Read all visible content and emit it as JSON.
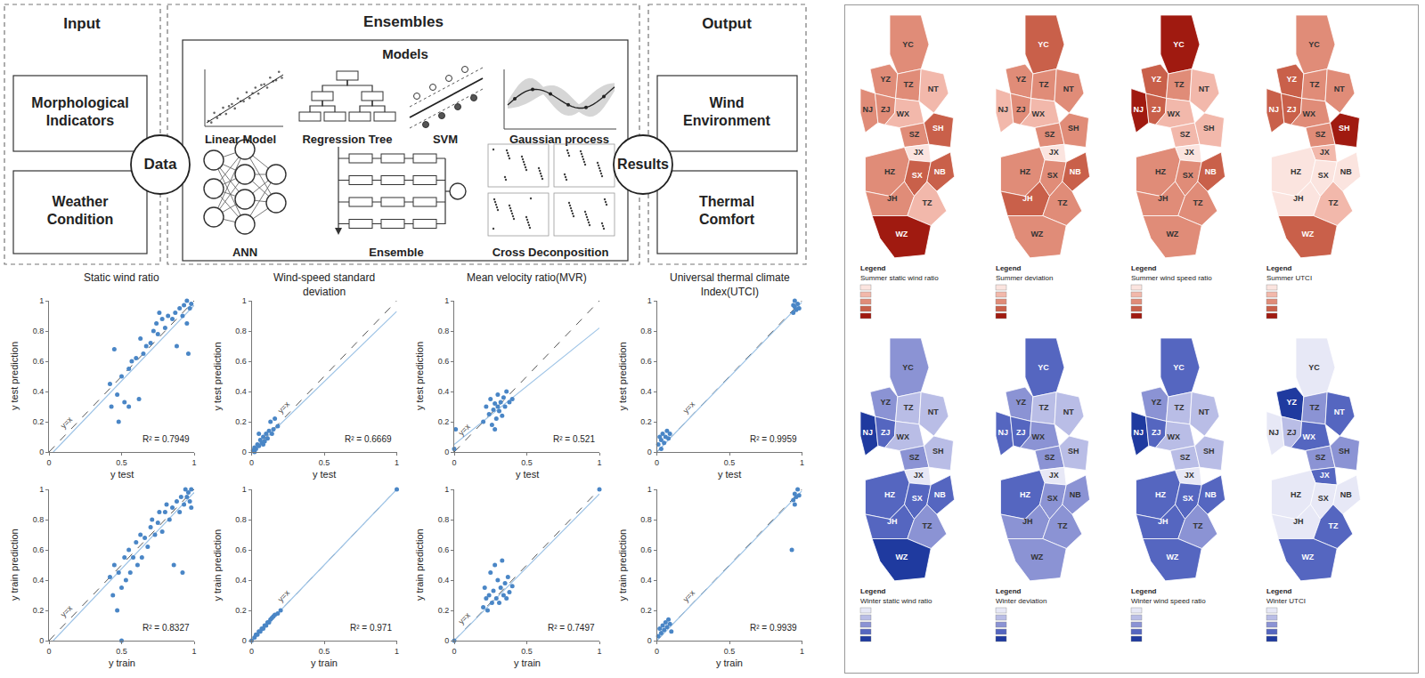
{
  "diagram": {
    "sections": {
      "input": "Input",
      "ensembles": "Ensembles",
      "output": "Output"
    },
    "inputs": [
      "Morphological Indicators",
      "Weather Condition"
    ],
    "hub_in": "Data",
    "models_title": "Models",
    "models": [
      "Linear Model",
      "Regression Tree",
      "SVM",
      "Gaussian process",
      "ANN",
      "Ensemble",
      "Cross Deconposition"
    ],
    "hub_out": "Results",
    "outputs": [
      "Wind Environment",
      "Thermal Comfort"
    ]
  },
  "chart_data": [
    {
      "type": "scatter",
      "title": "Static wind ratio",
      "x_label": "y test",
      "y_label": "y test prediction",
      "x": [
        0.42,
        0.43,
        0.45,
        0.47,
        0.48,
        0.5,
        0.52,
        0.55,
        0.55,
        0.57,
        0.6,
        0.62,
        0.63,
        0.65,
        0.67,
        0.7,
        0.72,
        0.74,
        0.75,
        0.78,
        0.8,
        0.82,
        0.85,
        0.87,
        0.88,
        0.9,
        0.92,
        0.95,
        0.95,
        0.97,
        0.98,
        0.93,
        0.76,
        0.96
      ],
      "y": [
        0.45,
        0.3,
        0.68,
        0.38,
        0.2,
        0.5,
        0.33,
        0.3,
        0.55,
        0.6,
        0.62,
        0.35,
        0.75,
        0.65,
        0.7,
        0.72,
        0.8,
        0.85,
        0.78,
        0.88,
        0.82,
        0.9,
        0.88,
        0.92,
        0.7,
        0.95,
        0.9,
        1.0,
        0.85,
        0.95,
        0.98,
        0.97,
        0.92,
        0.65
      ],
      "color": "#4a86c6",
      "marker": "circle",
      "xlim": [
        0,
        1
      ],
      "ylim": [
        0,
        1
      ],
      "xticks": [
        0,
        0.5,
        1
      ],
      "yticks": [
        0,
        0.2,
        0.4,
        0.6,
        0.8,
        1
      ],
      "grid": false,
      "annotation": "R² = 0.7949",
      "reference_line": {
        "label": "y=x",
        "color": "#555555",
        "line_style": "dashed"
      },
      "trend": {
        "x": [
          0.03,
          1
        ],
        "y": [
          0,
          0.97
        ],
        "color": "#9dc3e6",
        "line_style": "solid"
      }
    },
    {
      "type": "scatter",
      "title": "Wind-speed standard deviation",
      "x_label": "y test",
      "y_label": "y test prediction",
      "x": [
        0.01,
        0.02,
        0.03,
        0.04,
        0.05,
        0.06,
        0.07,
        0.08,
        0.09,
        0.1,
        0.11,
        0.12,
        0.13,
        0.14,
        0.15,
        0.16,
        0.18,
        0.05,
        0.08,
        0.02
      ],
      "y": [
        0.01,
        0.03,
        0.02,
        0.05,
        0.04,
        0.08,
        0.06,
        0.1,
        0.07,
        0.12,
        0.09,
        0.14,
        0.2,
        0.12,
        0.15,
        0.22,
        0.17,
        0.12,
        0.05,
        0.0
      ],
      "color": "#4a86c6",
      "marker": "circle",
      "xlim": [
        0,
        1
      ],
      "ylim": [
        0,
        1
      ],
      "xticks": [
        0,
        0.5,
        1
      ],
      "yticks": [
        0,
        0.2,
        0.4,
        0.6,
        0.8,
        1
      ],
      "grid": false,
      "annotation": "R² = 0.6669",
      "reference_line": {
        "label": "y=x",
        "color": "#555555",
        "line_style": "dashed"
      },
      "trend": {
        "x": [
          0,
          1
        ],
        "y": [
          0,
          0.93
        ],
        "color": "#9dc3e6",
        "line_style": "solid"
      }
    },
    {
      "type": "scatter",
      "title": "Mean velocity ratio(MVR)",
      "x_label": "y test",
      "y_label": "y test prediction",
      "x": [
        0,
        0.01,
        0.2,
        0.22,
        0.24,
        0.25,
        0.26,
        0.27,
        0.28,
        0.29,
        0.3,
        0.3,
        0.31,
        0.32,
        0.33,
        0.34,
        0.35,
        0.36,
        0.38,
        0.4,
        0.28
      ],
      "y": [
        0.02,
        0.15,
        0.2,
        0.3,
        0.25,
        0.35,
        0.18,
        0.28,
        0.32,
        0.22,
        0.3,
        0.38,
        0.27,
        0.33,
        0.24,
        0.36,
        0.3,
        0.4,
        0.33,
        0.35,
        0.15
      ],
      "color": "#4a86c6",
      "marker": "circle",
      "xlim": [
        0,
        1
      ],
      "ylim": [
        0,
        1
      ],
      "xticks": [
        0,
        0.5,
        1
      ],
      "yticks": [
        0,
        0.2,
        0.4,
        0.6,
        0.8,
        1
      ],
      "grid": false,
      "annotation": "R² = 0.521",
      "reference_line": {
        "label": "y=x",
        "color": "#555555",
        "line_style": "dashed"
      },
      "trend": {
        "x": [
          0,
          1
        ],
        "y": [
          0.05,
          0.82
        ],
        "color": "#9dc3e6",
        "line_style": "solid"
      }
    },
    {
      "type": "scatter",
      "title": "Universal thermal climate Index(UTCI)",
      "x_label": "y test",
      "y_label": "y test prediction",
      "x": [
        0.01,
        0.02,
        0.03,
        0.04,
        0.05,
        0.06,
        0.07,
        0.08,
        0.09,
        0.03,
        0.94,
        0.95,
        0.96,
        0.97,
        0.95,
        0.98,
        0.94
      ],
      "y": [
        0.05,
        0.1,
        0.08,
        0.12,
        0.06,
        0.1,
        0.14,
        0.09,
        0.12,
        0.02,
        0.92,
        0.96,
        0.94,
        0.98,
        1.0,
        0.95,
        0.97
      ],
      "color": "#4a86c6",
      "marker": "circle",
      "xlim": [
        0,
        1
      ],
      "ylim": [
        0,
        1
      ],
      "xticks": [
        0,
        0.5,
        1
      ],
      "yticks": [
        0,
        0.2,
        0.4,
        0.6,
        0.8,
        1
      ],
      "grid": false,
      "annotation": "R² = 0.9959",
      "reference_line": {
        "label": "y=x",
        "color": "#555555",
        "line_style": "dashed"
      },
      "trend": {
        "x": [
          0,
          1
        ],
        "y": [
          0,
          0.99
        ],
        "color": "#9dc3e6",
        "line_style": "solid"
      }
    },
    {
      "type": "scatter",
      "x_label": "y train",
      "y_label": "y train prediction",
      "x": [
        0.42,
        0.44,
        0.45,
        0.47,
        0.48,
        0.5,
        0.5,
        0.52,
        0.53,
        0.55,
        0.56,
        0.58,
        0.6,
        0.61,
        0.63,
        0.64,
        0.66,
        0.68,
        0.7,
        0.71,
        0.73,
        0.75,
        0.76,
        0.78,
        0.8,
        0.81,
        0.83,
        0.85,
        0.86,
        0.88,
        0.9,
        0.91,
        0.93,
        0.94,
        0.95,
        0.96,
        0.97,
        0.98,
        0.92,
        0.98
      ],
      "y": [
        0.42,
        0.3,
        0.5,
        0.2,
        0.45,
        0.35,
        0.0,
        0.55,
        0.4,
        0.6,
        0.45,
        0.55,
        0.65,
        0.5,
        0.7,
        0.55,
        0.68,
        0.62,
        0.75,
        0.8,
        0.7,
        0.78,
        0.85,
        0.72,
        0.85,
        0.9,
        0.8,
        0.88,
        0.5,
        0.92,
        0.85,
        0.95,
        0.9,
        1.0,
        0.95,
        0.98,
        0.92,
        1.0,
        0.45,
        0.88
      ],
      "color": "#4a86c6",
      "marker": "circle",
      "xlim": [
        0,
        1
      ],
      "ylim": [
        0,
        1
      ],
      "xticks": [
        0,
        0.5,
        1
      ],
      "yticks": [
        0,
        0.2,
        0.4,
        0.6,
        0.8,
        1
      ],
      "grid": false,
      "annotation": "R² = 0.8327",
      "reference_line": {
        "label": "y=x",
        "color": "#555555",
        "line_style": "dashed"
      },
      "trend": {
        "x": [
          0.03,
          1
        ],
        "y": [
          0,
          0.98
        ],
        "color": "#9dc3e6",
        "line_style": "solid"
      }
    },
    {
      "type": "scatter",
      "x_label": "y train",
      "y_label": "y train prediction",
      "x": [
        0.0,
        0.02,
        0.03,
        0.04,
        0.05,
        0.06,
        0.07,
        0.08,
        0.09,
        0.1,
        0.11,
        0.12,
        0.13,
        0.14,
        0.15,
        0.16,
        0.18,
        0.2,
        1
      ],
      "y": [
        0.0,
        0.02,
        0.04,
        0.04,
        0.06,
        0.06,
        0.08,
        0.08,
        0.1,
        0.1,
        0.12,
        0.12,
        0.14,
        0.15,
        0.16,
        0.17,
        0.18,
        0.2,
        1
      ],
      "color": "#4a86c6",
      "marker": "circle",
      "xlim": [
        0,
        1
      ],
      "ylim": [
        0,
        1
      ],
      "xticks": [
        0,
        0.5,
        1
      ],
      "yticks": [
        0,
        0.2,
        0.4,
        0.6,
        0.8,
        1
      ],
      "grid": false,
      "annotation": "R² = 0.971",
      "reference_line": {
        "label": "y=x",
        "color": "#555555",
        "line_style": "dashed"
      },
      "trend": {
        "x": [
          0,
          1
        ],
        "y": [
          0,
          1
        ],
        "color": "#9dc3e6",
        "line_style": "solid"
      }
    },
    {
      "type": "scatter",
      "x_label": "y train",
      "y_label": "y train prediction",
      "x": [
        0,
        0.2,
        0.21,
        0.22,
        0.23,
        0.24,
        0.25,
        0.26,
        0.27,
        0.28,
        0.29,
        0.3,
        0.31,
        0.32,
        0.33,
        0.34,
        0.35,
        0.36,
        0.37,
        0.38,
        0.4,
        1
      ],
      "y": [
        0,
        0.22,
        0.35,
        0.28,
        0.2,
        0.3,
        0.45,
        0.25,
        0.33,
        0.5,
        0.28,
        0.4,
        0.25,
        0.35,
        0.53,
        0.3,
        0.38,
        0.28,
        0.42,
        0.32,
        0.36,
        1
      ],
      "color": "#4a86c6",
      "marker": "circle",
      "xlim": [
        0,
        1
      ],
      "ylim": [
        0,
        1
      ],
      "xticks": [
        0,
        0.5,
        1
      ],
      "yticks": [
        0,
        0.2,
        0.4,
        0.6,
        0.8,
        1
      ],
      "grid": false,
      "annotation": "R² = 0.7497",
      "reference_line": {
        "label": "y=x",
        "color": "#555555",
        "line_style": "dashed"
      },
      "trend": {
        "x": [
          0,
          1
        ],
        "y": [
          0,
          0.97
        ],
        "color": "#9dc3e6",
        "line_style": "solid"
      }
    },
    {
      "type": "scatter",
      "x_label": "y train",
      "y_label": "y train prediction",
      "x": [
        0.01,
        0.02,
        0.03,
        0.04,
        0.05,
        0.06,
        0.07,
        0.08,
        0.09,
        0.1,
        0.93,
        0.94,
        0.95,
        0.96,
        0.97,
        0.98,
        0.95
      ],
      "y": [
        0.03,
        0.08,
        0.05,
        0.1,
        0.07,
        0.12,
        0.09,
        0.14,
        0.11,
        0.06,
        0.6,
        0.93,
        0.97,
        0.95,
        1.0,
        0.96,
        0.9
      ],
      "color": "#4a86c6",
      "marker": "circle",
      "xlim": [
        0,
        1
      ],
      "ylim": [
        0,
        1
      ],
      "xticks": [
        0,
        0.5,
        1
      ],
      "yticks": [
        0,
        0.2,
        0.4,
        0.6,
        0.8,
        1
      ],
      "grid": false,
      "annotation": "R² = 0.9939",
      "reference_line": {
        "label": "y=x",
        "color": "#555555",
        "line_style": "dashed"
      },
      "trend": {
        "x": [
          0,
          1
        ],
        "y": [
          0,
          0.99
        ],
        "color": "#9dc3e6",
        "line_style": "solid"
      }
    }
  ],
  "maps": {
    "legend_heading": "Legend",
    "cities": [
      "YC",
      "YZ",
      "TZ",
      "NT",
      "NJ",
      "ZJ",
      "WX",
      "SZ",
      "SH",
      "JX",
      "HZ",
      "SX",
      "NB",
      "JH",
      "TZ",
      "WZ"
    ],
    "panels": [
      {
        "title": "Summer static wind ratio",
        "colors": [
          "#fbe4df",
          "#f2b8ab",
          "#e08c78",
          "#c9604a",
          "#a01a10"
        ],
        "classes": [
          3,
          3,
          3,
          2,
          3,
          3,
          2,
          3,
          4,
          1,
          3,
          4,
          4,
          3,
          2,
          5
        ]
      },
      {
        "title": "Summer deviation",
        "colors": [
          "#fbe4df",
          "#f2b8ab",
          "#e08c78",
          "#c9604a",
          "#a01a10"
        ],
        "classes": [
          4,
          3,
          3,
          3,
          2,
          3,
          2,
          3,
          3,
          1,
          3,
          3,
          4,
          4,
          3,
          3
        ]
      },
      {
        "title": "Summer wind speed ratio",
        "colors": [
          "#fbe4df",
          "#f2b8ab",
          "#e08c78",
          "#c9604a",
          "#a01a10"
        ],
        "classes": [
          5,
          4,
          3,
          2,
          5,
          4,
          2,
          2,
          2,
          1,
          3,
          3,
          4,
          3,
          3,
          3
        ]
      },
      {
        "title": "Summer UTCI",
        "colors": [
          "#fbe4df",
          "#f2b8ab",
          "#e08c78",
          "#c9604a",
          "#a01a10"
        ],
        "classes": [
          3,
          4,
          3,
          3,
          4,
          4,
          3,
          3,
          5,
          2,
          1,
          1,
          1,
          1,
          2,
          4
        ]
      },
      {
        "title": "Winter static wind ratio",
        "colors": [
          "#e7e8f6",
          "#b9bde6",
          "#8b93d4",
          "#5566c0",
          "#1f3a9f"
        ],
        "classes": [
          3,
          3,
          2,
          2,
          5,
          4,
          2,
          3,
          2,
          1,
          4,
          4,
          4,
          4,
          3,
          5
        ]
      },
      {
        "title": "Winter deviation",
        "colors": [
          "#e7e8f6",
          "#b9bde6",
          "#8b93d4",
          "#5566c0",
          "#1f3a9f"
        ],
        "classes": [
          4,
          3,
          2,
          2,
          4,
          4,
          3,
          3,
          2,
          1,
          4,
          3,
          3,
          3,
          3,
          3
        ]
      },
      {
        "title": "Winter wind speed ratio",
        "colors": [
          "#e7e8f6",
          "#b9bde6",
          "#8b93d4",
          "#5566c0",
          "#1f3a9f"
        ],
        "classes": [
          4,
          3,
          2,
          2,
          5,
          4,
          2,
          2,
          2,
          1,
          4,
          4,
          4,
          4,
          3,
          4
        ]
      },
      {
        "title": "Winter UTCI",
        "colors": [
          "#e7e8f6",
          "#b9bde6",
          "#8b93d4",
          "#5566c0",
          "#1f3a9f"
        ],
        "classes": [
          1,
          5,
          3,
          4,
          1,
          2,
          4,
          3,
          3,
          4,
          1,
          1,
          1,
          1,
          4,
          4
        ]
      }
    ]
  }
}
